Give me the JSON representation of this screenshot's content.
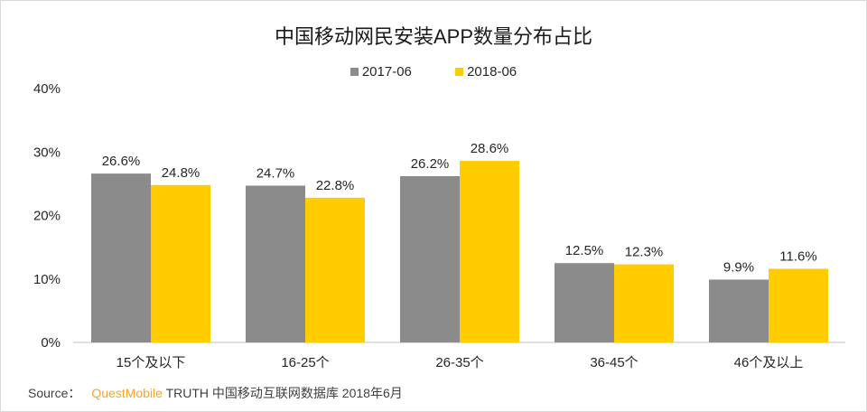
{
  "chart_data": {
    "type": "bar",
    "title": "中国移动网民安装APP数量分布占比",
    "categories": [
      "15个及以下",
      "16-25个",
      "26-35个",
      "36-45个",
      "46个及以上"
    ],
    "series": [
      {
        "name": "2017-06",
        "values": [
          26.6,
          24.7,
          26.2,
          12.5,
          9.9
        ],
        "color": "#8c8b8b"
      },
      {
        "name": "2018-06",
        "values": [
          24.8,
          22.8,
          28.6,
          12.3,
          11.6
        ],
        "color": "#ffcc00"
      }
    ],
    "ylim": [
      0,
      40
    ],
    "yticks": [
      "0%",
      "10%",
      "20%",
      "30%",
      "40%"
    ],
    "unit": "%",
    "legend": "top-center",
    "grid": false
  },
  "source": {
    "label": "Source：",
    "brand": "QuestMobile",
    "text": "TRUTH 中国移动互联网数据库 2018年6月"
  }
}
